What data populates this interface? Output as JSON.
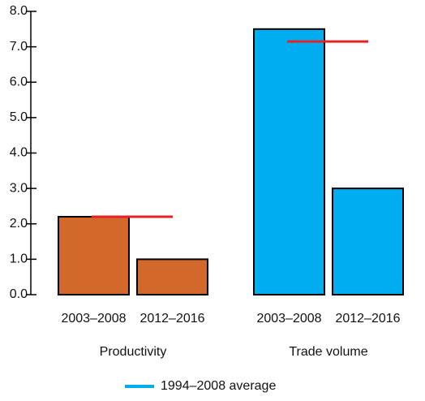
{
  "chart_data": {
    "type": "bar",
    "groups": [
      {
        "name": "Productivity",
        "color": "#d2692a",
        "categories": [
          "2003–2008",
          "2012–2016"
        ],
        "values": [
          2.2,
          1.0
        ],
        "average": 2.2
      },
      {
        "name": "Trade volume",
        "color": "#00aeef",
        "categories": [
          "2003–2008",
          "2012–2016"
        ],
        "values": [
          7.5,
          3.0
        ],
        "average": 7.15
      }
    ],
    "average_color": "#e4202a",
    "legend": {
      "label": "1994–2008 average",
      "color": "#00aeef"
    },
    "ylim": [
      0,
      8
    ],
    "yticks": [
      {
        "value": 0,
        "label": "0.0"
      },
      {
        "value": 1,
        "label": "1.0"
      },
      {
        "value": 2,
        "label": "2.0"
      },
      {
        "value": 3,
        "label": "3.0"
      },
      {
        "value": 4,
        "label": "4.0"
      },
      {
        "value": 5,
        "label": "5.0"
      },
      {
        "value": 6,
        "label": "6.0"
      },
      {
        "value": 7,
        "label": "7.0"
      },
      {
        "value": 8,
        "label": "8.0"
      }
    ]
  }
}
